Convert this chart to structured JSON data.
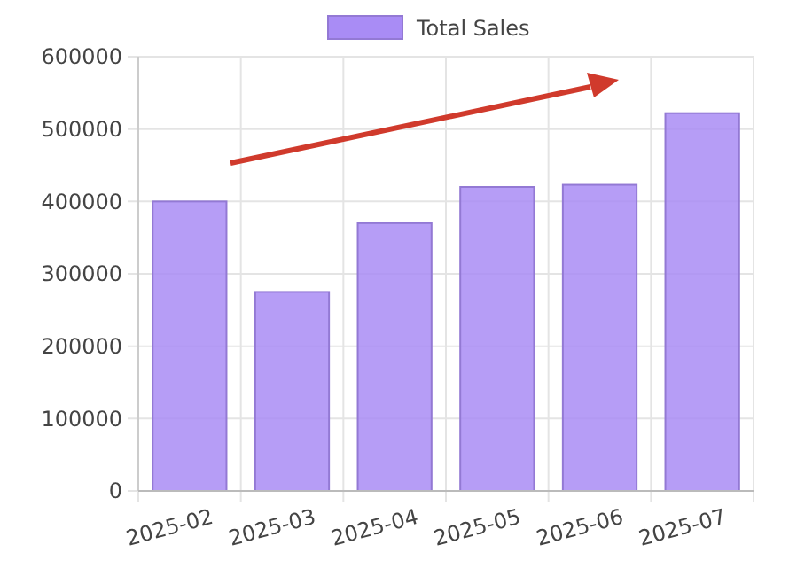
{
  "chart_data": {
    "type": "bar",
    "categories": [
      "2025-02",
      "2025-03",
      "2025-04",
      "2025-05",
      "2025-06",
      "2025-07"
    ],
    "series": [
      {
        "name": "Total Sales",
        "color": "#a98cf5",
        "values": [
          400000,
          275000,
          370000,
          420000,
          423000,
          522000
        ]
      }
    ],
    "ylim": [
      0,
      600000
    ],
    "yticks": [
      0,
      100000,
      200000,
      300000,
      400000,
      500000,
      600000
    ],
    "grid": true,
    "legend": "top"
  }
}
